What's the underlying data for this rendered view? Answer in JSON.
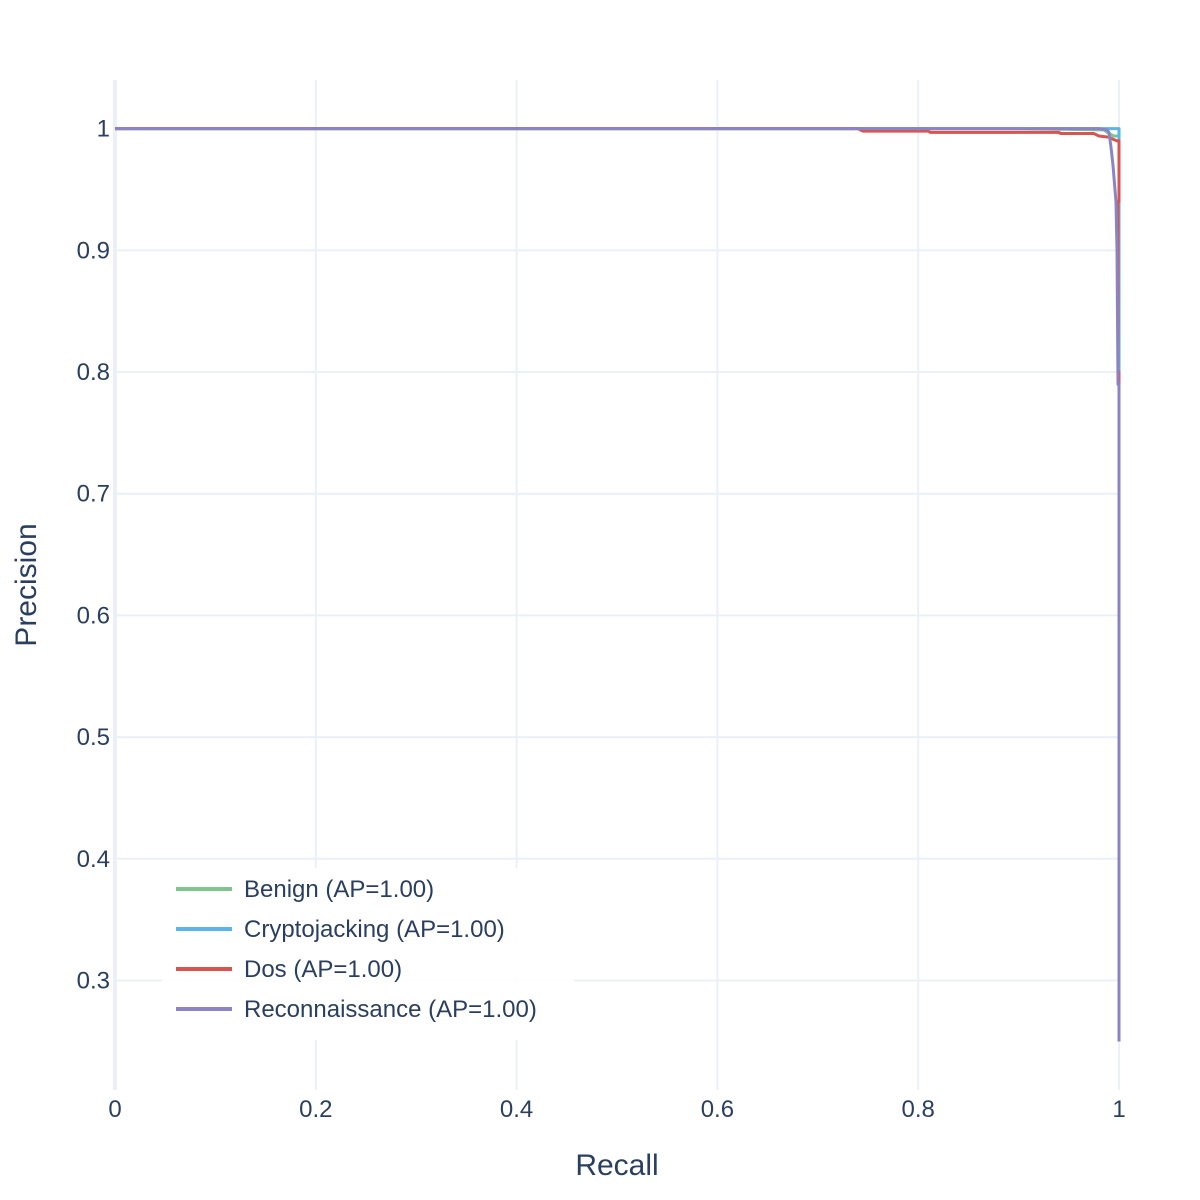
{
  "chart_data": {
    "type": "line",
    "title": "",
    "xlabel": "Recall",
    "ylabel": "Precision",
    "xlim": [
      0,
      1
    ],
    "ylim": [
      0.21,
      1.04
    ],
    "xticks": [
      0,
      0.2,
      0.4,
      0.6,
      0.8,
      1
    ],
    "xtick_labels": [
      "0",
      "0.2",
      "0.4",
      "0.6",
      "0.8",
      "1"
    ],
    "yticks": [
      0.3,
      0.4,
      0.5,
      0.6,
      0.7,
      0.8,
      0.9,
      1
    ],
    "ytick_labels": [
      "0.3",
      "0.4",
      "0.5",
      "0.6",
      "0.7",
      "0.8",
      "0.9",
      "1"
    ],
    "grid": true,
    "legend_position": "bottom-left",
    "series": [
      {
        "name": "Benign (AP=1.00)",
        "color": "#7fc48f",
        "x": [
          0,
          0.9,
          0.985,
          0.99,
          0.995,
          1.0,
          1.0
        ],
        "y": [
          1.0,
          1.0,
          0.999,
          0.996,
          0.994,
          0.994,
          0.25
        ]
      },
      {
        "name": "Cryptojacking (AP=1.00)",
        "color": "#5ab4ea",
        "x": [
          0,
          0.95,
          0.99,
          1.0,
          1.0
        ],
        "y": [
          1.0,
          1.0,
          1.0,
          1.0,
          0.25
        ]
      },
      {
        "name": "Dos (AP=1.00)",
        "color": "#d9534f",
        "x": [
          0,
          0.74,
          0.745,
          0.81,
          0.812,
          0.94,
          0.942,
          0.975,
          0.98,
          0.99,
          0.995,
          0.998,
          1.0,
          1.0,
          0.999,
          0.999,
          1.0,
          1.0
        ],
        "y": [
          1.0,
          1.0,
          0.998,
          0.998,
          0.997,
          0.997,
          0.996,
          0.996,
          0.994,
          0.993,
          0.991,
          0.99,
          0.99,
          0.94,
          0.94,
          0.8,
          0.8,
          0.25
        ]
      },
      {
        "name": "Reconnaissance (AP=1.00)",
        "color": "#8a84c4",
        "x": [
          0,
          0.98,
          0.988,
          0.99,
          0.992,
          0.994,
          0.996,
          0.997,
          0.998,
          0.999,
          1.0,
          1.0
        ],
        "y": [
          1.0,
          1.0,
          0.999,
          0.997,
          0.985,
          0.97,
          0.95,
          0.94,
          0.9,
          0.79,
          0.79,
          0.25
        ]
      }
    ]
  }
}
